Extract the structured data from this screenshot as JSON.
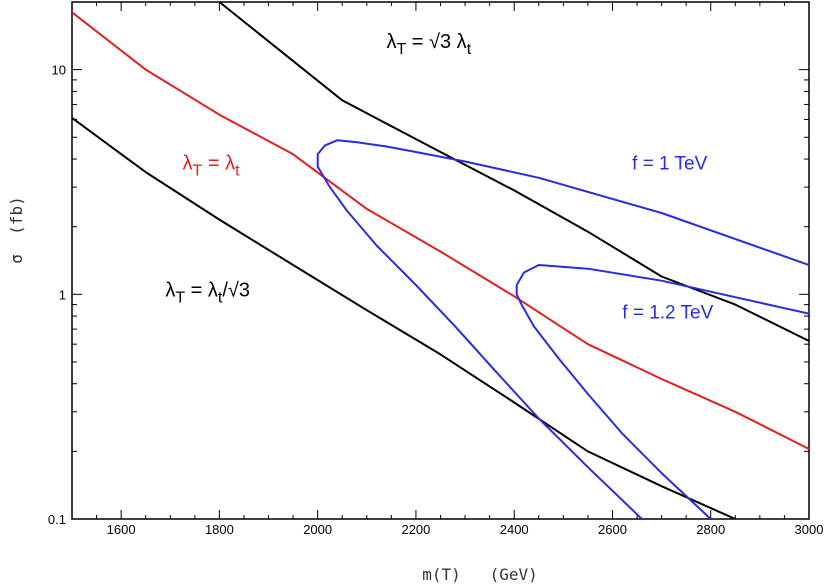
{
  "chart_data": {
    "type": "line",
    "title": "",
    "xlabel": "m(T)   (GeV)",
    "ylabel": "σ  (fb)",
    "xlim": [
      1500,
      3000
    ],
    "ylim": [
      0.1,
      20
    ],
    "yscale": "log",
    "grid": false,
    "x_ticks": [
      1600,
      1800,
      2000,
      2200,
      2400,
      2600,
      2800,
      3000
    ],
    "x_tick_labels": [
      "1600",
      "1800",
      "2000",
      "2200",
      "2400",
      "2600",
      "2800",
      "3000"
    ],
    "y_ticks": [
      0.1,
      1,
      10
    ],
    "y_tick_labels": [
      "0.1",
      "1",
      "10"
    ],
    "series": [
      {
        "key": "lambda_sqrt3",
        "color": "#000000",
        "x": [
          1800,
          2050,
          2250,
          2400,
          2550,
          2700,
          2850,
          3000
        ],
        "y": [
          20,
          7.3,
          4.3,
          2.9,
          1.9,
          1.2,
          0.9,
          0.62
        ]
      },
      {
        "key": "lambda_equal",
        "color": "#e02020",
        "x": [
          1500,
          1650,
          1800,
          1950,
          2100,
          2250,
          2400,
          2550,
          2700,
          2850,
          3000
        ],
        "y": [
          18,
          10,
          6.3,
          4.2,
          2.4,
          1.55,
          0.98,
          0.6,
          0.42,
          0.3,
          0.205
        ]
      },
      {
        "key": "lambda_over_sqrt3",
        "color": "#000000",
        "x": [
          1500,
          1650,
          1800,
          1950,
          2100,
          2250,
          2400,
          2550,
          2700,
          2850
        ],
        "y": [
          6.1,
          3.5,
          2.15,
          1.35,
          0.85,
          0.54,
          0.33,
          0.2,
          0.14,
          0.1
        ]
      },
      {
        "key": "f1",
        "color": "#2b2bdf",
        "x": [
          2660,
          2550,
          2450,
          2360,
          2280,
          2200,
          2120,
          2060,
          2025,
          2010,
          2000,
          2000,
          2015,
          2040,
          2080,
          2140,
          2200,
          2300,
          2450,
          2700,
          3000
        ],
        "y": [
          0.1,
          0.17,
          0.28,
          0.46,
          0.72,
          1.1,
          1.65,
          2.35,
          3.0,
          3.4,
          3.7,
          4.2,
          4.6,
          4.85,
          4.75,
          4.55,
          4.3,
          3.9,
          3.3,
          2.3,
          1.35
        ]
      },
      {
        "key": "f12",
        "color": "#2b2bdf",
        "x": [
          2800,
          2700,
          2620,
          2550,
          2490,
          2440,
          2415,
          2405,
          2405,
          2420,
          2450,
          2550,
          2700,
          3000
        ],
        "y": [
          0.1,
          0.16,
          0.24,
          0.36,
          0.52,
          0.72,
          0.9,
          1.0,
          1.1,
          1.25,
          1.35,
          1.3,
          1.15,
          0.82
        ]
      }
    ],
    "annotations": [
      {
        "text_main": "λ",
        "sub": "T",
        "rest": " = √3 λ",
        "sub2": "t",
        "tail": "",
        "color": "#000000",
        "x": 2140,
        "y": 12.5
      },
      {
        "text_main": "λ",
        "sub": "T",
        "rest": " = λ",
        "sub2": "t",
        "tail": "",
        "color": "#e02020",
        "x": 1725,
        "y": 3.6
      },
      {
        "text_main": "λ",
        "sub": "T",
        "rest": " = λ",
        "sub2": "t",
        "tail": "/√3",
        "color": "#000000",
        "x": 1690,
        "y": 0.98
      },
      {
        "plain": "f  = 1 TeV",
        "color": "#2b2bdf",
        "x": 2640,
        "y": 3.6
      },
      {
        "plain": "f = 1.2 TeV",
        "color": "#2b2bdf",
        "x": 2620,
        "y": 0.78
      }
    ]
  }
}
